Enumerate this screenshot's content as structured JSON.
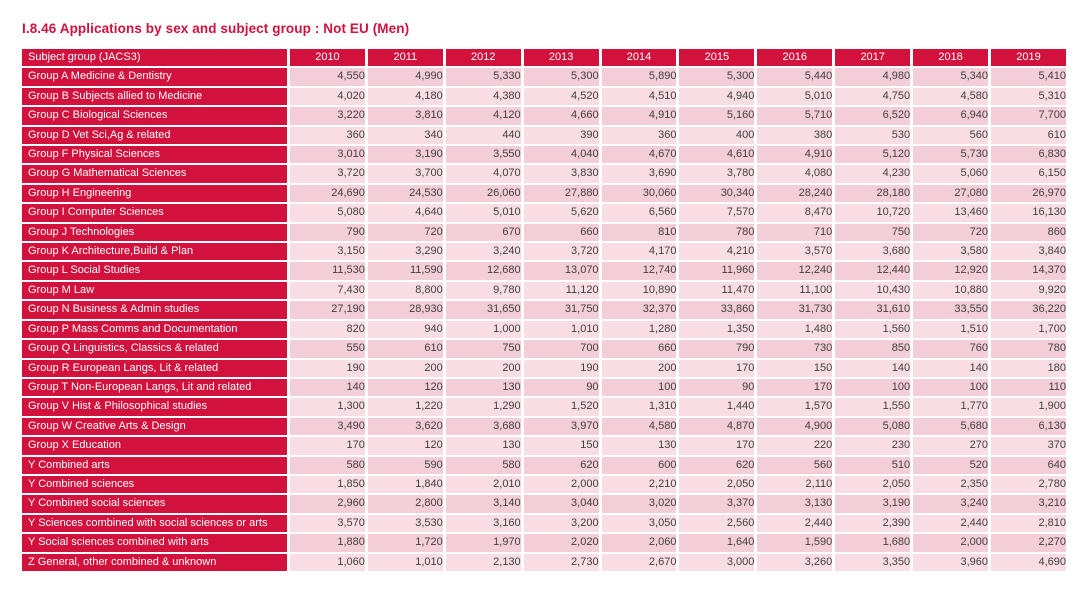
{
  "title": "I.8.46 Applications by sex and subject group : Not EU (Men)",
  "colors": {
    "red": "#D2113D",
    "row_band_a": "#F3CDD7",
    "row_band_b": "#F8DEE4",
    "cell_text": "#3F3F3F"
  },
  "table": {
    "header": [
      "Subject group (JACS3)",
      "2010",
      "2011",
      "2012",
      "2013",
      "2014",
      "2015",
      "2016",
      "2017",
      "2018",
      "2019"
    ],
    "rows": [
      {
        "label": "Group A Medicine & Dentistry",
        "values": [
          "4,550",
          "4,990",
          "5,330",
          "5,300",
          "5,890",
          "5,300",
          "5,440",
          "4,980",
          "5,340",
          "5,410"
        ]
      },
      {
        "label": "Group B Subjects allied to Medicine",
        "values": [
          "4,020",
          "4,180",
          "4,380",
          "4,520",
          "4,510",
          "4,940",
          "5,010",
          "4,750",
          "4,580",
          "5,310"
        ]
      },
      {
        "label": "Group C Biological Sciences",
        "values": [
          "3,220",
          "3,810",
          "4,120",
          "4,660",
          "4,910",
          "5,160",
          "5,710",
          "6,520",
          "6,940",
          "7,700"
        ]
      },
      {
        "label": "Group D Vet Sci,Ag & related",
        "values": [
          "360",
          "340",
          "440",
          "390",
          "360",
          "400",
          "380",
          "530",
          "560",
          "610"
        ]
      },
      {
        "label": "Group F Physical Sciences",
        "values": [
          "3,010",
          "3,190",
          "3,550",
          "4,040",
          "4,670",
          "4,610",
          "4,910",
          "5,120",
          "5,730",
          "6,830"
        ]
      },
      {
        "label": "Group G Mathematical Sciences",
        "values": [
          "3,720",
          "3,700",
          "4,070",
          "3,830",
          "3,690",
          "3,780",
          "4,080",
          "4,230",
          "5,060",
          "6,150"
        ]
      },
      {
        "label": "Group H Engineering",
        "values": [
          "24,690",
          "24,530",
          "26,060",
          "27,880",
          "30,060",
          "30,340",
          "28,240",
          "28,180",
          "27,080",
          "26,970"
        ]
      },
      {
        "label": "Group I Computer Sciences",
        "values": [
          "5,080",
          "4,640",
          "5,010",
          "5,620",
          "6,560",
          "7,570",
          "8,470",
          "10,720",
          "13,460",
          "16,130"
        ]
      },
      {
        "label": "Group J Technologies",
        "values": [
          "790",
          "720",
          "670",
          "660",
          "810",
          "780",
          "710",
          "750",
          "720",
          "860"
        ]
      },
      {
        "label": "Group K Architecture,Build & Plan",
        "values": [
          "3,150",
          "3,290",
          "3,240",
          "3,720",
          "4,170",
          "4,210",
          "3,570",
          "3,680",
          "3,580",
          "3,840"
        ]
      },
      {
        "label": "Group L Social Studies",
        "values": [
          "11,530",
          "11,590",
          "12,680",
          "13,070",
          "12,740",
          "11,960",
          "12,240",
          "12,440",
          "12,920",
          "14,370"
        ]
      },
      {
        "label": "Group M Law",
        "values": [
          "7,430",
          "8,800",
          "9,780",
          "11,120",
          "10,890",
          "11,470",
          "11,100",
          "10,430",
          "10,880",
          "9,920"
        ]
      },
      {
        "label": "Group N Business & Admin studies",
        "values": [
          "27,190",
          "28,930",
          "31,650",
          "31,750",
          "32,370",
          "33,860",
          "31,730",
          "31,610",
          "33,550",
          "36,220"
        ]
      },
      {
        "label": "Group P Mass Comms and Documentation",
        "values": [
          "820",
          "940",
          "1,000",
          "1,010",
          "1,280",
          "1,350",
          "1,480",
          "1,560",
          "1,510",
          "1,700"
        ]
      },
      {
        "label": "Group Q Linguistics, Classics & related",
        "values": [
          "550",
          "610",
          "750",
          "700",
          "660",
          "790",
          "730",
          "850",
          "760",
          "780"
        ]
      },
      {
        "label": "Group R European Langs, Lit & related",
        "values": [
          "190",
          "200",
          "200",
          "190",
          "200",
          "170",
          "150",
          "140",
          "140",
          "180"
        ]
      },
      {
        "label": "Group T Non-European Langs, Lit and related",
        "values": [
          "140",
          "120",
          "130",
          "90",
          "100",
          "90",
          "170",
          "100",
          "100",
          "110"
        ]
      },
      {
        "label": "Group V Hist & Philosophical studies",
        "values": [
          "1,300",
          "1,220",
          "1,290",
          "1,520",
          "1,310",
          "1,440",
          "1,570",
          "1,550",
          "1,770",
          "1,900"
        ]
      },
      {
        "label": "Group W Creative Arts & Design",
        "values": [
          "3,490",
          "3,620",
          "3,680",
          "3,970",
          "4,580",
          "4,870",
          "4,900",
          "5,080",
          "5,680",
          "6,130"
        ]
      },
      {
        "label": "Group X Education",
        "values": [
          "170",
          "120",
          "130",
          "150",
          "130",
          "170",
          "220",
          "230",
          "270",
          "370"
        ]
      },
      {
        "label": "Y Combined arts",
        "values": [
          "580",
          "590",
          "580",
          "620",
          "600",
          "620",
          "560",
          "510",
          "520",
          "640"
        ]
      },
      {
        "label": "Y Combined sciences",
        "values": [
          "1,850",
          "1,840",
          "2,010",
          "2,000",
          "2,210",
          "2,050",
          "2,110",
          "2,050",
          "2,350",
          "2,780"
        ]
      },
      {
        "label": "Y Combined social sciences",
        "values": [
          "2,960",
          "2,800",
          "3,140",
          "3,040",
          "3,020",
          "3,370",
          "3,130",
          "3,190",
          "3,240",
          "3,210"
        ]
      },
      {
        "label": "Y Sciences combined with social sciences or arts",
        "values": [
          "3,570",
          "3,530",
          "3,160",
          "3,200",
          "3,050",
          "2,560",
          "2,440",
          "2,390",
          "2,440",
          "2,810"
        ]
      },
      {
        "label": "Y Social sciences combined with arts",
        "values": [
          "1,880",
          "1,720",
          "1,970",
          "2,020",
          "2,060",
          "1,640",
          "1,590",
          "1,680",
          "2,000",
          "2,270"
        ]
      },
      {
        "label": "Z General, other combined & unknown",
        "values": [
          "1,060",
          "1,010",
          "2,130",
          "2,730",
          "2,670",
          "3,000",
          "3,260",
          "3,350",
          "3,960",
          "4,690"
        ]
      }
    ]
  }
}
